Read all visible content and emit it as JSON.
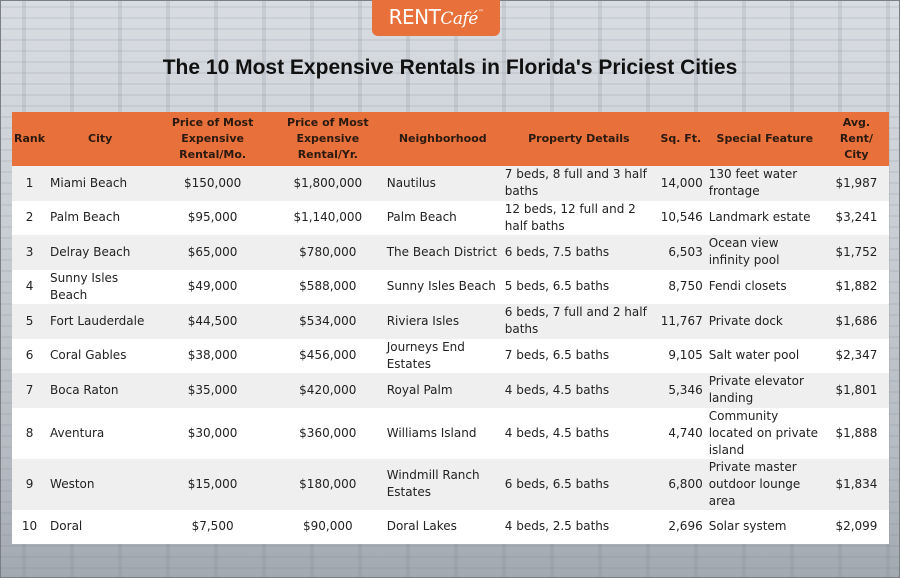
{
  "logo": {
    "brand_rent": "RENT",
    "brand_cafe": "Café",
    "tm": "™"
  },
  "title": "The 10 Most Expensive Rentals in Florida's Priciest Cities",
  "colors": {
    "accent": "#e8703a",
    "row_alt": "#efefef"
  },
  "table": {
    "headers": [
      "Rank",
      "City",
      "Price of Most Expensive Rental/Mo.",
      "Price of Most Expensive Rental/Yr.",
      "Neighborhood",
      "Property Details",
      "Sq. Ft.",
      "Special Feature",
      "Avg. Rent/ City"
    ],
    "rows": [
      [
        "1",
        "Miami Beach",
        "$150,000",
        "$1,800,000",
        "Nautilus",
        "7 beds, 8 full and 3 half baths",
        "14,000",
        "130 feet water frontage",
        "$1,987"
      ],
      [
        "2",
        "Palm Beach",
        "$95,000",
        "$1,140,000",
        "Palm Beach",
        "12 beds, 12 full and 2 half baths",
        "10,546",
        "Landmark estate",
        "$3,241"
      ],
      [
        "3",
        "Delray Beach",
        "$65,000",
        "$780,000",
        "The Beach District",
        "6 beds, 7.5 baths",
        "6,503",
        "Ocean view infinity pool",
        "$1,752"
      ],
      [
        "4",
        "Sunny Isles Beach",
        "$49,000",
        "$588,000",
        "Sunny Isles Beach",
        "5 beds, 6.5 baths",
        "8,750",
        "Fendi closets",
        "$1,882"
      ],
      [
        "5",
        "Fort Lauderdale",
        "$44,500",
        "$534,000",
        "Riviera Isles",
        "6 beds, 7 full and 2 half baths",
        "11,767",
        "Private dock",
        "$1,686"
      ],
      [
        "6",
        "Coral Gables",
        "$38,000",
        "$456,000",
        "Journeys End Estates",
        "7 beds, 6.5 baths",
        "9,105",
        "Salt water pool",
        "$2,347"
      ],
      [
        "7",
        "Boca Raton",
        "$35,000",
        "$420,000",
        "Royal Palm",
        "4 beds, 4.5 baths",
        "5,346",
        "Private elevator landing",
        "$1,801"
      ],
      [
        "8",
        "Aventura",
        "$30,000",
        "$360,000",
        "Williams Island",
        "4 beds, 4.5 baths",
        "4,740",
        "Community located on private island",
        "$1,888"
      ],
      [
        "9",
        "Weston",
        "$15,000",
        "$180,000",
        "Windmill Ranch Estates",
        "6 beds, 6.5 baths",
        "6,800",
        "Private master outdoor lounge area",
        "$1,834"
      ],
      [
        "10",
        "Doral",
        "$7,500",
        "$90,000",
        "Doral Lakes",
        "4 beds, 2.5 baths",
        "2,696",
        "Solar system",
        "$2,099"
      ]
    ]
  }
}
